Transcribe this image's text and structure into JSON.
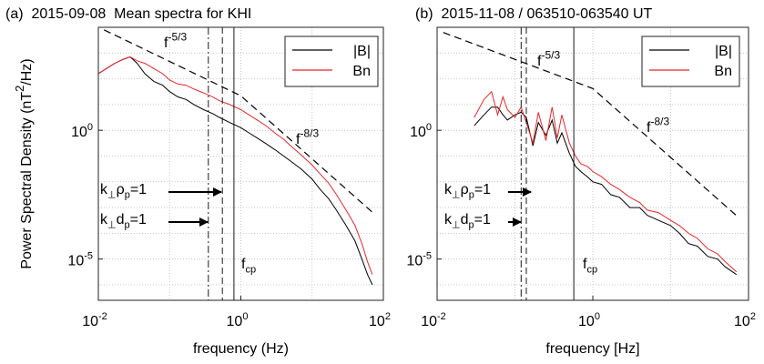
{
  "chart_data": [
    {
      "type": "line",
      "title": "(a)  2015-09-08  Mean spectra for KHI",
      "x_label": "frequency (Hz)",
      "y_label": [
        {
          "text": "Power Spectral Density (nT"
        },
        {
          "text": "2",
          "shift": "super"
        },
        {
          "text": "/Hz)"
        }
      ],
      "log_x": true,
      "log_y": true,
      "grid": true,
      "legend": "upper right",
      "xlim": [
        0.01,
        100
      ],
      "ylim": [
        2.5e-07,
        10000
      ],
      "xticks": [
        {
          "value": 0.01,
          "label": "10",
          "exponent": "-2"
        },
        {
          "value": 1,
          "label": "10",
          "exponent": "0"
        },
        {
          "value": 100,
          "label": "10",
          "exponent": "2"
        }
      ],
      "yticks": [
        {
          "value": 1e-05,
          "label": "10",
          "exponent": "-5"
        },
        {
          "value": 1,
          "label": "10",
          "exponent": "0"
        }
      ],
      "xgrid": [
        0.01,
        0.1,
        1,
        10,
        100
      ],
      "ygrid": [
        1e-06,
        1e-05,
        0.0001,
        0.001,
        0.01,
        0.1,
        1,
        10,
        100,
        1000,
        10000
      ],
      "x": [
        0.01,
        0.013,
        0.017,
        0.022,
        0.028,
        0.035,
        0.045,
        0.06,
        0.08,
        0.1,
        0.13,
        0.17,
        0.22,
        0.3,
        0.4,
        0.5,
        0.7,
        1,
        1.3,
        1.7,
        2.2,
        3,
        4,
        5,
        7,
        10,
        13,
        17,
        22,
        30,
        40,
        50,
        60,
        70
      ],
      "series": [
        {
          "name": "|B|",
          "color": "#000000",
          "values": [
            158,
            251,
            398,
            562,
            708,
            398,
            158,
            79.4,
            56.2,
            31.6,
            20,
            15.8,
            10,
            6.31,
            4.47,
            3.16,
            2.0,
            1.26,
            0.794,
            0.501,
            0.316,
            0.178,
            0.1,
            0.0631,
            0.0316,
            0.0126,
            0.005,
            0.00224,
            0.00079,
            0.0002,
            5e-05,
            1e-05,
            2.5e-06,
            1e-06
          ]
        },
        {
          "name": "Bn",
          "color": "#e8262a",
          "values": [
            158,
            251,
            398,
            562,
            708,
            501,
            398,
            251,
            158,
            89,
            63,
            56.2,
            39.8,
            28.2,
            20,
            14.1,
            10,
            6.31,
            3.98,
            2.51,
            1.58,
            0.794,
            0.447,
            0.251,
            0.112,
            0.0447,
            0.02,
            0.0089,
            0.00316,
            0.00079,
            0.0002,
            4e-05,
            7.9e-06,
            2.5e-06
          ]
        }
      ],
      "reference_lines": [
        {
          "x": [
            0.012,
            1,
            74
          ],
          "y": [
            7943,
            21.9,
            0.000575
          ],
          "labels": [
            [
              {
                "text": "f"
              },
              {
                "text": "-5/3",
                "shift": "super"
              }
            ],
            [
              {
                "text": "f"
              },
              {
                "text": "-8/3",
                "shift": "super"
              }
            ]
          ]
        }
      ],
      "vlines": [
        {
          "x": 0.35,
          "style": "dashdot"
        },
        {
          "x": 0.55,
          "style": "dashed"
        },
        {
          "x": 0.8,
          "style": "solid"
        }
      ],
      "annotations": [
        [
          {
            "text": "k"
          },
          {
            "text": "⊥",
            "shift": "sub"
          },
          {
            "text": "ρ"
          },
          {
            "text": "p",
            "shift": "sub"
          },
          {
            "text": "=1"
          }
        ],
        [
          {
            "text": "k"
          },
          {
            "text": "⊥",
            "shift": "sub"
          },
          {
            "text": "d"
          },
          {
            "text": "p",
            "shift": "sub"
          },
          {
            "text": "=1"
          }
        ],
        [
          {
            "text": "f"
          },
          {
            "text": "cp",
            "shift": "sub"
          }
        ]
      ]
    },
    {
      "type": "line",
      "title": "(b)  2015-11-08 / 063510-063540 UT",
      "x_label": "frequency [Hz]",
      "log_x": true,
      "log_y": true,
      "grid": true,
      "legend": "upper right",
      "xlim": [
        0.01,
        100
      ],
      "ylim": [
        2.5e-07,
        10000
      ],
      "xticks": [
        {
          "value": 0.01,
          "label": "10",
          "exponent": "-2"
        },
        {
          "value": 1,
          "label": "10",
          "exponent": "0"
        },
        {
          "value": 100,
          "label": "10",
          "exponent": "2"
        }
      ],
      "yticks": [
        {
          "value": 1e-05,
          "label": "10",
          "exponent": "-5"
        },
        {
          "value": 1,
          "label": "10",
          "exponent": "0"
        }
      ],
      "xgrid": [
        0.01,
        0.1,
        1,
        10,
        100
      ],
      "ygrid": [
        1e-06,
        1e-05,
        0.0001,
        0.001,
        0.01,
        0.1,
        1,
        10,
        100,
        1000,
        10000
      ],
      "x": [
        0.03,
        0.04,
        0.05,
        0.06,
        0.07,
        0.08,
        0.1,
        0.12,
        0.14,
        0.17,
        0.2,
        0.25,
        0.3,
        0.35,
        0.4,
        0.5,
        0.6,
        0.7,
        0.85,
        1,
        1.3,
        1.7,
        2.2,
        3,
        4,
        5,
        7,
        10,
        13,
        17,
        22,
        30,
        40,
        50,
        70
      ],
      "series": [
        {
          "name": "|B|",
          "color": "#000000",
          "values": [
            1.51,
            3.98,
            7.94,
            7.94,
            3.98,
            2.51,
            3.98,
            5.01,
            3.16,
            0.251,
            2.0,
            0.631,
            2.51,
            0.316,
            0.794,
            0.126,
            0.0398,
            0.0251,
            0.0158,
            0.01,
            0.00794,
            0.00316,
            0.00251,
            0.001,
            0.001,
            0.0005,
            0.000316,
            0.0002,
            0.0001,
            3.98e-05,
            3.16e-05,
            1.26e-05,
            1e-05,
            5e-06,
            2.51e-06
          ]
        },
        {
          "name": "Bn",
          "color": "#e8262a",
          "values": [
            3.16,
            15.8,
            31.6,
            3.98,
            20,
            6.31,
            3.16,
            7.94,
            2.0,
            0.316,
            5.01,
            0.398,
            7.94,
            0.501,
            3.98,
            0.316,
            0.1,
            0.0501,
            0.0398,
            0.0251,
            0.0158,
            0.00794,
            0.00501,
            0.00251,
            0.00158,
            0.000794,
            0.000631,
            0.000316,
            0.0002,
            0.0001,
            6.31e-05,
            2.51e-05,
            1.58e-05,
            7.94e-06,
            3.16e-06
          ]
        }
      ],
      "reference_lines": [
        {
          "x": [
            0.012,
            1,
            72
          ],
          "y": [
            6310,
            41.7,
            0.00045
          ],
          "labels": [
            [
              {
                "text": "f"
              },
              {
                "text": "-5/3",
                "shift": "super"
              }
            ],
            [
              {
                "text": "f"
              },
              {
                "text": "-8/3",
                "shift": "super"
              }
            ]
          ]
        }
      ],
      "vlines": [
        {
          "x": 0.12,
          "style": "dashdot"
        },
        {
          "x": 0.14,
          "style": "dashed"
        },
        {
          "x": 0.57,
          "style": "solid"
        }
      ],
      "annotations": [
        [
          {
            "text": "k"
          },
          {
            "text": "⊥",
            "shift": "sub"
          },
          {
            "text": "ρ"
          },
          {
            "text": "p",
            "shift": "sub"
          },
          {
            "text": "=1"
          }
        ],
        [
          {
            "text": "k"
          },
          {
            "text": "⊥",
            "shift": "sub"
          },
          {
            "text": "d"
          },
          {
            "text": "p",
            "shift": "sub"
          },
          {
            "text": "=1"
          }
        ],
        [
          {
            "text": "f"
          },
          {
            "text": "cp",
            "shift": "sub"
          }
        ]
      ]
    }
  ]
}
